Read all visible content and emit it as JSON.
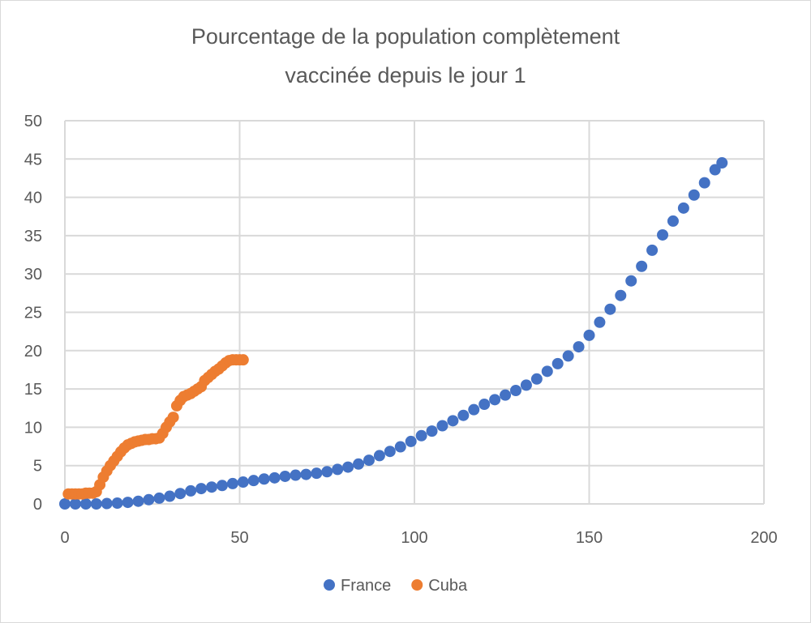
{
  "chart_data": {
    "type": "scatter",
    "title_lines": [
      "Pourcentage de la population complètement",
      "vaccinée depuis le jour 1"
    ],
    "xlabel": "",
    "ylabel": "",
    "xlim": [
      0,
      200
    ],
    "ylim": [
      0,
      50
    ],
    "xticks": [
      0,
      50,
      100,
      150,
      200
    ],
    "yticks": [
      0,
      5,
      10,
      15,
      20,
      25,
      30,
      35,
      40,
      45,
      50
    ],
    "grid": true,
    "legend_position": "bottom",
    "series": [
      {
        "name": "France",
        "color": "#4472c4",
        "x": [
          0,
          3,
          6,
          9,
          12,
          15,
          18,
          21,
          24,
          27,
          30,
          33,
          36,
          39,
          42,
          45,
          48,
          51,
          54,
          57,
          60,
          63,
          66,
          69,
          72,
          75,
          78,
          81,
          84,
          87,
          90,
          93,
          96,
          99,
          102,
          105,
          108,
          111,
          114,
          117,
          120,
          123,
          126,
          129,
          132,
          135,
          138,
          141,
          144,
          147,
          150,
          153,
          156,
          159,
          162,
          165,
          168,
          171,
          174,
          177,
          180,
          183,
          186,
          188
        ],
        "y": [
          0,
          0,
          0,
          0,
          0.05,
          0.1,
          0.2,
          0.35,
          0.55,
          0.75,
          1.0,
          1.35,
          1.7,
          2.0,
          2.2,
          2.4,
          2.65,
          2.85,
          3.05,
          3.25,
          3.4,
          3.6,
          3.75,
          3.85,
          4.0,
          4.2,
          4.5,
          4.8,
          5.2,
          5.7,
          6.3,
          6.85,
          7.45,
          8.15,
          8.9,
          9.5,
          10.2,
          10.85,
          11.55,
          12.3,
          13.0,
          13.6,
          14.2,
          14.8,
          15.5,
          16.3,
          17.3,
          18.3,
          19.3,
          20.5,
          22.0,
          23.7,
          25.4,
          27.2,
          29.1,
          31.0,
          33.1,
          35.1,
          36.9,
          38.6,
          40.3,
          41.9,
          43.6,
          44.5
        ]
      },
      {
        "name": "Cuba",
        "color": "#ed7d31",
        "x": [
          1,
          2,
          3,
          4,
          5,
          6,
          7,
          8,
          9,
          10,
          11,
          12,
          13,
          14,
          15,
          16,
          17,
          18,
          19,
          20,
          21,
          22,
          23,
          24,
          25,
          26,
          27,
          28,
          29,
          30,
          31,
          32,
          33,
          34,
          35,
          36,
          37,
          38,
          39,
          40,
          41,
          42,
          43,
          44,
          45,
          46,
          47,
          48,
          49,
          50,
          51
        ],
        "y": [
          1.3,
          1.3,
          1.3,
          1.3,
          1.3,
          1.4,
          1.4,
          1.4,
          1.6,
          2.5,
          3.5,
          4.3,
          5.0,
          5.6,
          6.2,
          6.8,
          7.3,
          7.7,
          7.9,
          8.1,
          8.2,
          8.3,
          8.4,
          8.4,
          8.5,
          8.5,
          8.6,
          9.2,
          10.0,
          10.7,
          11.3,
          12.8,
          13.5,
          14.0,
          14.2,
          14.4,
          14.7,
          15.0,
          15.3,
          16.1,
          16.5,
          16.9,
          17.3,
          17.6,
          18.0,
          18.4,
          18.7,
          18.8,
          18.8,
          18.8,
          18.8
        ]
      }
    ]
  }
}
